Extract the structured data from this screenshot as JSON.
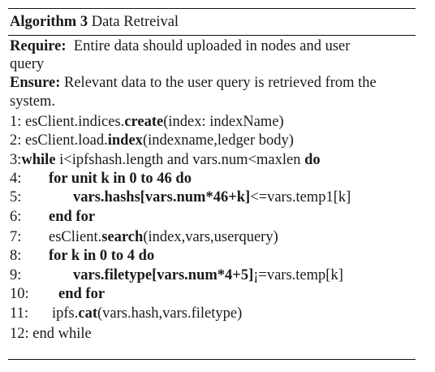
{
  "caption": {
    "label": "Algorithm 3",
    "title": "Data Retreival"
  },
  "require": {
    "label": "Require:",
    "line1_text": "Entire data should uploaded in nodes and user",
    "line2_text": "query"
  },
  "ensure": {
    "label": "Ensure:",
    "line1_text": "Relevant data to the user query is retrieved from the",
    "line2_text": "system."
  },
  "lines": [
    {
      "num": "1:",
      "pre": "esClient.indices.",
      "kw": "create",
      "post": "(index: indexName)"
    },
    {
      "num": "2:",
      "pre": "esClient.load.",
      "kw": "index",
      "post": "(indexname,ledger body)"
    },
    {
      "num": "3:",
      "kw1": "while",
      "mid": "i<ipfshash.length and vars.num<maxlen",
      "kw2": "do"
    },
    {
      "num": "4:",
      "text": "for unit k in 0 to 46 do"
    },
    {
      "num": "5:",
      "b1": "vars.hashs[vars.num*46+k]",
      "post": "<=vars.temp1[k]"
    },
    {
      "num": "6:",
      "text": "end for"
    },
    {
      "num": "7:",
      "pre": "esClient.",
      "kw": "search",
      "post": "(index,vars,userquery)"
    },
    {
      "num": "8:",
      "text": "for k in 0 to 4 do"
    },
    {
      "num": "9:",
      "b1": "vars.filetype[vars.num*4+5]",
      "post": "¡=vars.temp[k]"
    },
    {
      "num": "10:",
      "text": "end for"
    },
    {
      "num": "11:",
      "pre": "ipfs.",
      "kw": "cat",
      "post": "(vars.hash,vars.filetype)"
    },
    {
      "num": "12:",
      "text": "end while"
    }
  ]
}
